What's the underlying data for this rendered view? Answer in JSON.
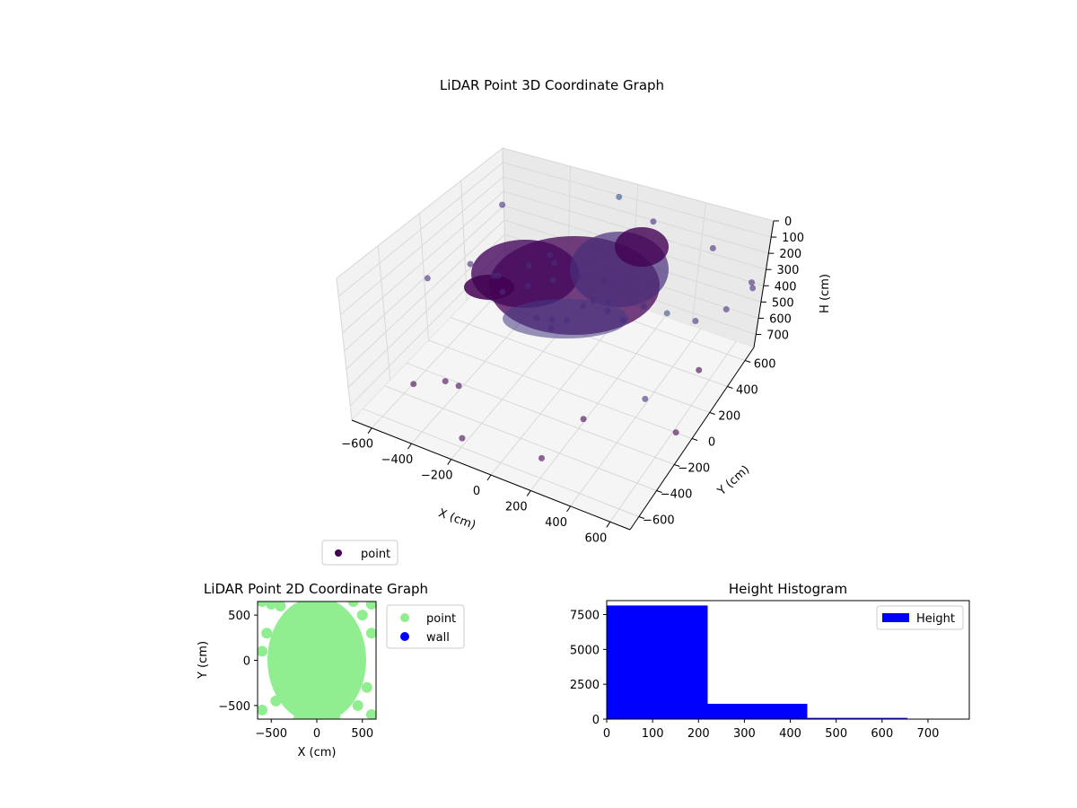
{
  "chart_data": [
    {
      "type": "scatter",
      "projection": "3d",
      "title": "LiDAR Point 3D Coordinate Graph",
      "xlabel": "X (cm)",
      "ylabel": "Y (cm)",
      "zlabel": "H (cm)",
      "xlim": [
        -700,
        700
      ],
      "ylim": [
        -700,
        700
      ],
      "zlim": [
        0,
        780
      ],
      "z_inverted": true,
      "xticks": [
        -600,
        -400,
        -200,
        0,
        200,
        400,
        600
      ],
      "yticks": [
        -600,
        -400,
        -200,
        0,
        200,
        400,
        600
      ],
      "zticks": [
        0,
        100,
        200,
        300,
        400,
        500,
        600,
        700
      ],
      "xtick_labels": [
        "−600",
        "−400",
        "−200",
        "0",
        "200",
        "400",
        "600"
      ],
      "ytick_labels": [
        "−600",
        "−400",
        "−200",
        "0",
        "200",
        "400",
        "600"
      ],
      "ztick_labels": [
        "0",
        "100",
        "200",
        "300",
        "400",
        "500",
        "600",
        "700"
      ],
      "colormap": "viridis (by height)",
      "grid": true,
      "legend": {
        "position": "lower-left",
        "entries": [
          "point"
        ]
      },
      "series": [
        {
          "name": "point",
          "color": "#440154",
          "points": [
            [
              -100,
              50,
              150
            ],
            [
              -200,
              0,
              200
            ],
            [
              0,
              100,
              120
            ],
            [
              100,
              50,
              180
            ],
            [
              -300,
              -50,
              250
            ],
            [
              50,
              -100,
              220
            ],
            [
              -150,
              150,
              140
            ],
            [
              200,
              0,
              160
            ],
            [
              -50,
              -50,
              300
            ],
            [
              150,
              100,
              200
            ],
            [
              -250,
              100,
              170
            ],
            [
              0,
              -150,
              260
            ],
            [
              250,
              50,
              230
            ],
            [
              -350,
              0,
              210
            ],
            [
              100,
              150,
              130
            ],
            [
              -100,
              -100,
              280
            ],
            [
              300,
              150,
              190
            ],
            [
              -200,
              200,
              150
            ],
            [
              50,
              50,
              240
            ],
            [
              -400,
              50,
              270
            ],
            [
              450,
              350,
              350
            ],
            [
              550,
              450,
              300
            ],
            [
              500,
              -200,
              420
            ],
            [
              -500,
              -500,
              600
            ],
            [
              600,
              600,
              250
            ],
            [
              -550,
              400,
              150
            ],
            [
              300,
              -400,
              500
            ],
            [
              -300,
              -450,
              550
            ],
            [
              600,
              -100,
              650
            ],
            [
              -600,
              200,
              400
            ],
            [
              400,
              600,
              100
            ],
            [
              -100,
              650,
              60
            ],
            [
              550,
              200,
              500
            ],
            [
              -450,
              -300,
              700
            ],
            [
              200,
              -600,
              650
            ],
            [
              650,
              500,
              120
            ],
            [
              -650,
              -100,
              300
            ],
            [
              100,
              600,
              80
            ],
            [
              500,
              0,
              30
            ],
            [
              -200,
              -600,
              720
            ]
          ]
        }
      ]
    },
    {
      "type": "scatter",
      "title": "LiDAR Point 2D Coordinate Graph",
      "xlabel": "X (cm)",
      "ylabel": "Y (cm)",
      "xlim": [
        -650,
        650
      ],
      "ylim": [
        -650,
        650
      ],
      "xticks": [
        -500,
        0,
        500
      ],
      "yticks": [
        -500,
        0,
        500
      ],
      "xtick_labels": [
        "−500",
        "0",
        "500"
      ],
      "ytick_labels": [
        "−500",
        "0",
        "500"
      ],
      "legend": {
        "position": "outside-right",
        "entries": [
          "point",
          "wall"
        ]
      },
      "series": [
        {
          "name": "point",
          "color": "#90ee90",
          "points": [
            [
              0,
              0
            ],
            [
              -100,
              100
            ],
            [
              100,
              -100
            ],
            [
              -150,
              -200
            ],
            [
              150,
              200
            ],
            [
              0,
              300
            ],
            [
              0,
              -300
            ],
            [
              -200,
              400
            ],
            [
              200,
              -400
            ],
            [
              -50,
              500
            ],
            [
              50,
              -500
            ],
            [
              250,
              100
            ],
            [
              -250,
              -100
            ],
            [
              300,
              300
            ],
            [
              -300,
              250
            ],
            [
              100,
              600
            ],
            [
              -100,
              -600
            ],
            [
              400,
              -200
            ],
            [
              -350,
              0
            ],
            [
              350,
              0
            ],
            [
              -600,
              650
            ],
            [
              -500,
              620
            ],
            [
              600,
              620
            ],
            [
              500,
              500
            ],
            [
              -600,
              -550
            ],
            [
              -450,
              -450
            ],
            [
              450,
              -500
            ],
            [
              600,
              -600
            ],
            [
              -600,
              100
            ],
            [
              600,
              300
            ],
            [
              -550,
              300
            ],
            [
              550,
              -300
            ],
            [
              -400,
              600
            ],
            [
              400,
              650
            ],
            [
              -200,
              -650
            ],
            [
              200,
              -620
            ],
            [
              0,
              650
            ],
            [
              0,
              -650
            ]
          ]
        },
        {
          "name": "wall",
          "color": "#0000ff",
          "points": []
        }
      ]
    },
    {
      "type": "bar",
      "subtype": "histogram",
      "title": "Height Histogram",
      "xlim": [
        0,
        790
      ],
      "ylim": [
        0,
        8500
      ],
      "xticks": [
        0,
        100,
        200,
        300,
        400,
        500,
        600,
        700
      ],
      "yticks": [
        0,
        2500,
        5000,
        7500
      ],
      "xtick_labels": [
        "0",
        "100",
        "200",
        "300",
        "400",
        "500",
        "600",
        "700"
      ],
      "ytick_labels": [
        "0",
        "2500",
        "5000",
        "7500"
      ],
      "legend": {
        "position": "top-right",
        "entries": [
          "Height"
        ]
      },
      "series": [
        {
          "name": "Height",
          "color": "#0000ff",
          "bins": [
            [
              0,
              220
            ],
            [
              220,
              437
            ],
            [
              437,
              655
            ],
            [
              655,
              790
            ]
          ],
          "values": [
            8150,
            1100,
            90,
            20
          ]
        }
      ]
    }
  ]
}
